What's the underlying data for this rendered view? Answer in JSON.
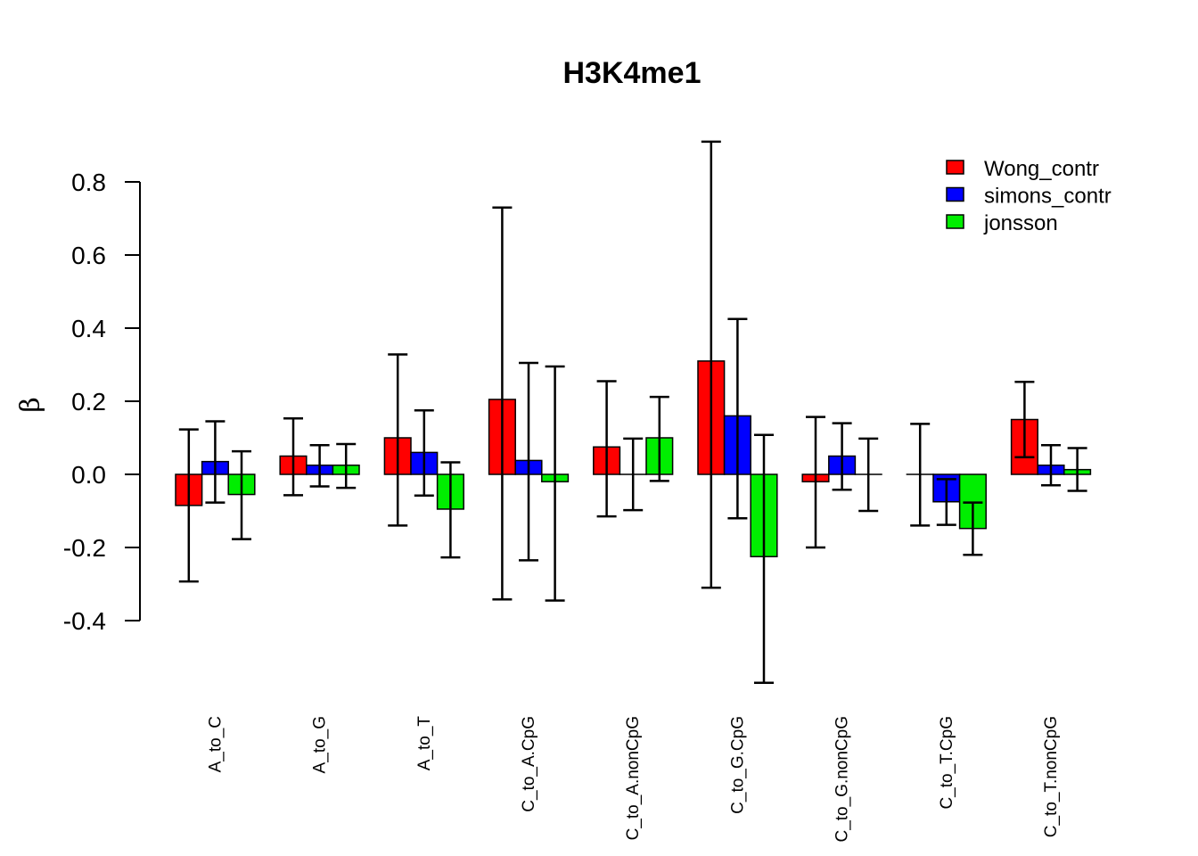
{
  "chart_data": {
    "type": "bar",
    "title": "H3K4me1",
    "ylabel": "β",
    "xlabel": "",
    "ylim": [
      -0.4,
      0.8
    ],
    "yticks": [
      "-0.4",
      "-0.2",
      "0.0",
      "0.2",
      "0.4",
      "0.6",
      "0.8"
    ],
    "categories": [
      "A_to_C",
      "A_to_G",
      "A_to_T",
      "C_to_A.CpG",
      "C_to_A.nonCpG",
      "C_to_G.CpG",
      "C_to_G.nonCpG",
      "C_to_T.CpG",
      "C_to_T.nonCpG"
    ],
    "series": [
      {
        "name": "Wong_contr",
        "color": "#ff0000",
        "values": [
          -0.085,
          0.05,
          0.1,
          0.205,
          0.075,
          0.31,
          -0.02,
          0.0,
          0.15
        ],
        "err_low": [
          -0.293,
          -0.057,
          -0.14,
          -0.342,
          -0.115,
          -0.31,
          -0.2,
          -0.14,
          0.047
        ],
        "err_high": [
          0.123,
          0.153,
          0.328,
          0.73,
          0.255,
          0.91,
          0.157,
          0.138,
          0.253
        ]
      },
      {
        "name": "simons_contr",
        "color": "#0000ff",
        "values": [
          0.035,
          0.025,
          0.06,
          0.038,
          0.0,
          0.16,
          0.05,
          -0.075,
          0.025
        ],
        "err_low": [
          -0.077,
          -0.033,
          -0.058,
          -0.235,
          -0.098,
          -0.12,
          -0.042,
          -0.138,
          -0.03
        ],
        "err_high": [
          0.145,
          0.08,
          0.175,
          0.305,
          0.098,
          0.425,
          0.14,
          -0.013,
          0.08
        ]
      },
      {
        "name": "jonsson",
        "color": "#00ee00",
        "values": [
          -0.055,
          0.025,
          -0.095,
          -0.02,
          0.1,
          -0.225,
          0.0,
          -0.148,
          0.013
        ],
        "err_low": [
          -0.177,
          -0.037,
          -0.227,
          -0.345,
          -0.018,
          -0.57,
          -0.1,
          -0.22,
          -0.045
        ],
        "err_high": [
          0.063,
          0.083,
          0.033,
          0.295,
          0.212,
          0.108,
          0.098,
          -0.077,
          0.072
        ]
      }
    ],
    "legend_position": "top-right",
    "grid": false
  }
}
